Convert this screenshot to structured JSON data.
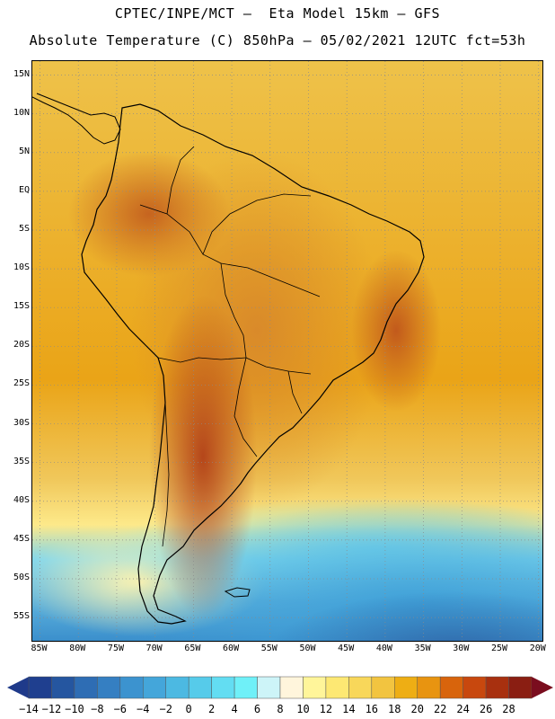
{
  "header": {
    "title_line1": "CPTEC/INPE/MCT —  Eta Model 15km — GFS",
    "title_line2": "Absolute Temperature (C) 850hPa — 05/02/2021 12UTC fct=53h"
  },
  "map": {
    "lat_labels": [
      "15N",
      "10N",
      "5N",
      "EQ",
      "5S",
      "10S",
      "15S",
      "20S",
      "25S",
      "30S",
      "35S",
      "40S",
      "45S",
      "50S",
      "55S"
    ],
    "lat_values": [
      15,
      10,
      5,
      0,
      -5,
      -10,
      -15,
      -20,
      -25,
      -30,
      -35,
      -40,
      -45,
      -50,
      -55
    ],
    "lon_labels": [
      "85W",
      "80W",
      "75W",
      "70W",
      "65W",
      "60W",
      "55W",
      "50W",
      "45W",
      "40W",
      "35W",
      "30W",
      "25W",
      "20W"
    ],
    "lon_values": [
      -85,
      -80,
      -75,
      -70,
      -65,
      -60,
      -55,
      -50,
      -45,
      -40,
      -35,
      -30,
      -25,
      -20
    ],
    "lat_range": [
      -58,
      16.8
    ],
    "lon_range": [
      -86,
      -19.5
    ]
  },
  "colorbar": {
    "labels": [
      "-14",
      "-12",
      "-10",
      "-8",
      "-6",
      "-4",
      "-2",
      "0",
      "2",
      "4",
      "6",
      "8",
      "10",
      "12",
      "14",
      "16",
      "18",
      "20",
      "22",
      "24",
      "26",
      "28"
    ],
    "colors": [
      "#1f3f8f",
      "#2556a0",
      "#2e6db4",
      "#357fc2",
      "#3c93cf",
      "#44a6da",
      "#4cb9e2",
      "#56cbea",
      "#63ddf2",
      "#6ff0f8",
      "#cdf4f8",
      "#fff5dc",
      "#fff59a",
      "#fde873",
      "#f8d75a",
      "#f2c440",
      "#eeae14",
      "#e89410",
      "#d8640c",
      "#c8480e",
      "#a8300f",
      "#8a1e12"
    ],
    "underflow_color": "#1f3a8a",
    "overflow_color": "#7a0d1e"
  }
}
